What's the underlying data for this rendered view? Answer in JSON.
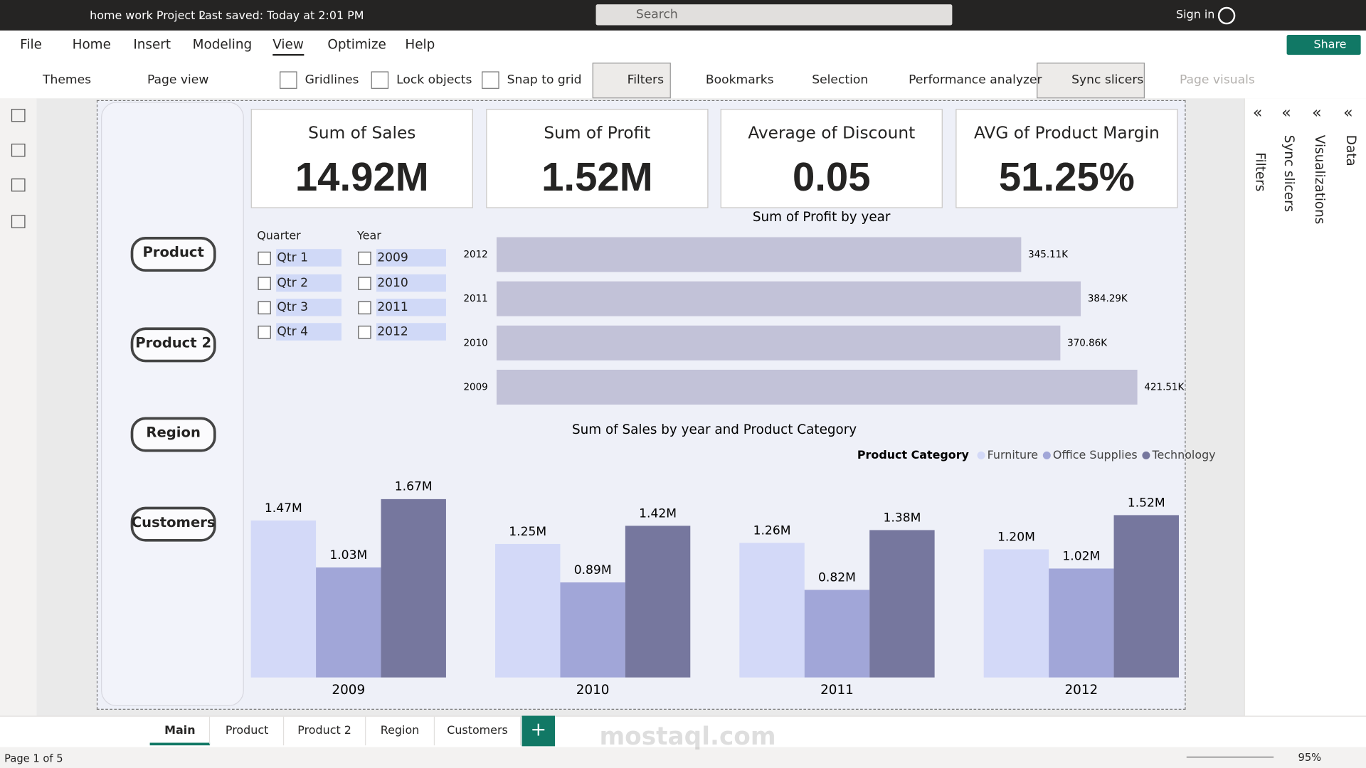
{
  "titlebar": {
    "file_title": "home work Project 2",
    "saved": "Last saved: Today at 2:01 PM",
    "search": "Search",
    "sign_in": "Sign in"
  },
  "menu": [
    "File",
    "Home",
    "Insert",
    "Modeling",
    "View",
    "Optimize",
    "Help"
  ],
  "share": "Share",
  "ribbon": [
    "Themes",
    "Page view",
    "Gridlines",
    "Lock objects",
    "Snap to grid",
    "Filters",
    "Bookmarks",
    "Selection",
    "Performance analyzer",
    "Sync slicers",
    "Page visuals"
  ],
  "panes": [
    "Filters",
    "Sync slicers",
    "Visualizations",
    "Data"
  ],
  "nav_buttons": [
    "Product",
    "Product 2",
    "Region",
    "Customers"
  ],
  "cards": [
    {
      "label": "Sum of Sales",
      "value": "14.92M"
    },
    {
      "label": "Sum of Profit",
      "value": "1.52M"
    },
    {
      "label": "Average of Discount",
      "value": "0.05"
    },
    {
      "label": "AVG of Product Margin",
      "value": "51.25%"
    }
  ],
  "slicers": [
    {
      "title": "Quarter",
      "items": [
        "Qtr 1",
        "Qtr 2",
        "Qtr 3",
        "Qtr 4"
      ]
    },
    {
      "title": "Year",
      "items": [
        "2009",
        "2010",
        "2011",
        "2012"
      ]
    }
  ],
  "profit_chart": {
    "type": "bar",
    "title": "Sum of Profit by year",
    "categories": [
      "2012",
      "2011",
      "2010",
      "2009"
    ],
    "values": [
      345110,
      384290,
      370860,
      421510
    ],
    "value_labels": [
      "345.11K",
      "384.29K",
      "370.86K",
      "421.51K"
    ],
    "color": "#c2c2d8",
    "xlim": [
      0,
      447000
    ]
  },
  "sales_chart": {
    "type": "grouped_bar",
    "title": "Sum of Sales by year and Product Category",
    "legend_title": "Product Category",
    "categories": [
      "2009",
      "2010",
      "2011",
      "2012"
    ],
    "series": [
      {
        "name": "Furniture",
        "color": "#d3d9f8",
        "values": [
          1470000,
          1250000,
          1260000,
          1200000
        ],
        "value_labels": [
          "1.47M",
          "1.25M",
          "1.26M",
          "1.20M"
        ]
      },
      {
        "name": "Office Supplies",
        "color": "#a1a6d8",
        "values": [
          1030000,
          890000,
          820000,
          1020000
        ],
        "value_labels": [
          "1.03M",
          "0.89M",
          "0.82M",
          "1.02M"
        ]
      },
      {
        "name": "Technology",
        "color": "#76779e",
        "values": [
          1670000,
          1420000,
          1380000,
          1520000
        ],
        "value_labels": [
          "1.67M",
          "1.42M",
          "1.38M",
          "1.52M"
        ]
      }
    ],
    "ylim": [
      0,
      1900000
    ]
  },
  "tabs": [
    "Main",
    "Product",
    "Product 2",
    "Region",
    "Customers"
  ],
  "status": "Page 1 of 5",
  "zoom": "95%",
  "watermark": "mostaql.com"
}
